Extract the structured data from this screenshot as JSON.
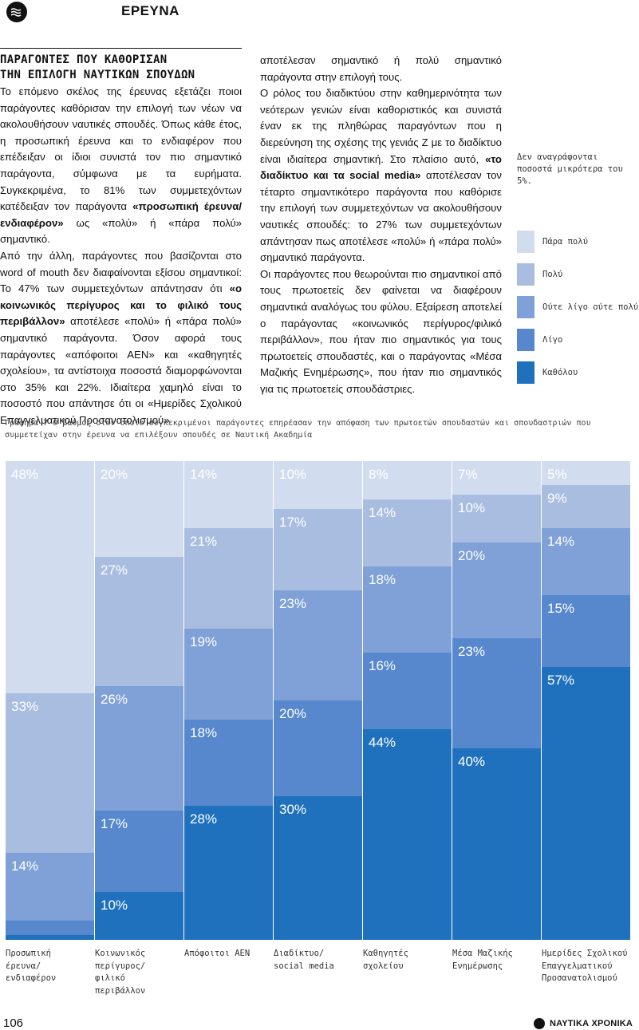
{
  "header": {
    "section": "ΕΡΕΥΝΑ",
    "icon": "waves-icon"
  },
  "article": {
    "subhead_line1": "ΠΑΡΑΓΟΝΤΕΣ ΠΟΥ ΚΑΘΟΡΙΣΑΝ",
    "subhead_line2": "ΤΗΝ ΕΠΙΛΟΓΗ ΝΑΥΤΙΚΩΝ ΣΠΟΥΔΩΝ",
    "p1_a": "Το επόμενο σκέλος της έρευνας εξετάζει ποιοι παράγοντες καθόρισαν την επιλογή των νέων να ακολουθήσουν ναυτικές σπουδές. Όπως κάθε έτος, η προσωπική έρευνα και το ενδιαφέρον που επέδειξαν οι ίδιοι συνιστά τον πιο σημαντικό παράγοντα, σύμφωνα με τα ευρήματα. Συγκεκριμένα, το 81% των συμμετεχόντων κατέδειξαν τον παράγοντα ",
    "p1_b": "«προσωπική έρευνα/ενδιαφέρον»",
    "p1_c": " ως «πολύ» ή «πάρα πολύ» σημαντικό.",
    "p2_a": "Από την άλλη, παράγοντες που βασίζονται στο word of mouth δεν διαφαίνονται εξίσου σημαντικοί: Το 47% των συμμετεχόντων απάντησαν ότι ",
    "p2_b": "«ο κοινωνικός περίγυρος και το φιλικό τους περιβάλλον»",
    "p2_c": " αποτέλεσε «πολύ» ή «πάρα πολύ» σημαντικό παράγοντα. Όσον αφορά τους παράγοντες «απόφοιτοι ΑΕΝ» και «καθηγητές σχολείου», τα αντίστοιχα ποσοστά διαμορφώνονται στο 35% και 22%. Ιδιαίτερα χαμηλό είναι το ποσοστό που απάντησε ότι οι «Ημερίδες Σχολικού Επαγγελματικού Προσανατολισμού»",
    "p3": "αποτέλεσαν σημαντικό ή πολύ σημαντικό παράγοντα στην επιλογή τους.",
    "p4_a": "Ο ρόλος του διαδικτύου στην καθημερινότητα των νεότερων γενιών είναι καθοριστικός και συνιστά έναν εκ της πληθώρας παραγόντων που η διερεύνηση της σχέσης της γενιάς Ζ με το διαδίκτυο είναι ιδιαίτερα σημαντική. Στο πλαίσιο αυτό, ",
    "p4_b": "«το διαδίκτυο και τα social media»",
    "p4_c": " αποτέλεσαν τον τέταρτο σημαντικότερο παράγοντα που καθόρισε την επιλογή των συμμετεχόντων να ακολουθήσουν ναυτικές σπουδές: το 27% των συμμετεχόντων απάντησαν πως αποτέλεσε «πολύ» ή «πάρα πολύ» σημαντικό παράγοντα.",
    "p5": "Οι παράγοντες που θεωρούνται πιο σημαντικοί από τους πρωτοετείς δεν φαίνεται να διαφέρουν σημαντικά αναλόγως του φύλου. Εξαίρεση αποτελεί ο παράγοντας «κοινωνικός περίγυρος/φιλικό περιβάλλον», που ήταν πιο σημαντικός για τους πρωτοετείς σπουδαστές, και ο παράγοντας «Μέσα Μαζικής Ενημέρωσης», που ήταν πιο σημαντικός για τις πρωτοετείς σπουδάστριες."
  },
  "note": "Δεν αναγράφονται ποσοστά μικρότερα του 5%.",
  "caption": "Γράφημα 7 Ο βαθμός στον οποίο συγκεκριμένοι παράγοντες επηρέασαν την απόφαση των πρωτοετών σπουδαστών και σπουδαστριών που συμμετείχαν στην έρευνα να επιλέξουν σπουδές σε Ναυτική Ακαδημία",
  "chart_data": {
    "type": "bar",
    "stacked": true,
    "orientation": "vertical",
    "ylim": [
      0,
      100
    ],
    "categories": [
      "Προσωπική έρευνα/ ενδιαφέρον",
      "Κοινωνικός περίγυρος/ φιλικό περιβάλλον",
      "Απόφοιτοι ΑΕΝ",
      "Διαδίκτυο/ social media",
      "Καθηγητές σχολείου",
      "Μέσα Μαζικής Ενημέρωσης",
      "Ημερίδες Σχολικού Επαγγελματικού Προσανατολισμού"
    ],
    "series": [
      {
        "name": "Πάρα πολύ",
        "color": "#d2dcef",
        "values": [
          48,
          20,
          14,
          10,
          8,
          7,
          5
        ]
      },
      {
        "name": "Πολύ",
        "color": "#a9bde1",
        "values": [
          33,
          27,
          21,
          17,
          14,
          10,
          9
        ]
      },
      {
        "name": "Ούτε λίγο ούτε πολύ",
        "color": "#7fa1d8",
        "values": [
          14,
          26,
          19,
          23,
          18,
          20,
          14
        ]
      },
      {
        "name": "Λίγο",
        "color": "#5787cd",
        "values": [
          3,
          17,
          18,
          20,
          16,
          23,
          15
        ]
      },
      {
        "name": "Καθόλου",
        "color": "#1f71bd",
        "values": [
          1,
          10,
          28,
          30,
          44,
          40,
          57
        ]
      }
    ],
    "labels_visible_threshold": 5
  },
  "footer": {
    "page": "106",
    "brand": "ΝΑΥΤΙΚΑ ΧΡΟΝΙΚΑ"
  }
}
